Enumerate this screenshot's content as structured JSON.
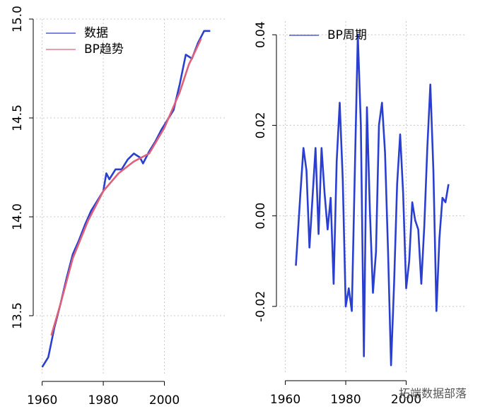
{
  "chart_data": [
    {
      "type": "line",
      "series": [
        {
          "name": "数据",
          "color": "#2a3fd0",
          "x": [
            1960,
            1962,
            1964,
            1966,
            1968,
            1970,
            1972,
            1974,
            1976,
            1978,
            1980,
            1981,
            1982,
            1984,
            1986,
            1988,
            1990,
            1992,
            1993,
            1995,
            1997,
            1999,
            2001,
            2003,
            2005,
            2007,
            2009,
            2011,
            2013,
            2015
          ],
          "values": [
            13.24,
            13.29,
            13.44,
            13.56,
            13.69,
            13.81,
            13.88,
            13.96,
            14.03,
            14.08,
            14.13,
            14.22,
            14.19,
            14.24,
            14.24,
            14.29,
            14.32,
            14.3,
            14.27,
            14.33,
            14.38,
            14.44,
            14.49,
            14.54,
            14.67,
            14.82,
            14.8,
            14.88,
            14.94,
            14.94
          ]
        },
        {
          "name": "BP趋势",
          "color": "#e0607a",
          "x": [
            1963,
            1966,
            1970,
            1975,
            1980,
            1985,
            1990,
            1995,
            2000,
            2005,
            2008,
            2012
          ],
          "values": [
            13.4,
            13.56,
            13.79,
            13.98,
            14.13,
            14.22,
            14.28,
            14.32,
            14.45,
            14.63,
            14.77,
            14.9
          ]
        }
      ],
      "xlim": [
        1958,
        2020
      ],
      "ylim": [
        13.2,
        15.0
      ],
      "xticks": [
        1960,
        1980,
        2000
      ],
      "yticks": [
        13.5,
        {
          "value": 14,
          "label": "14.0"
        },
        14.5,
        {
          "value": 15,
          "label": "15.0"
        }
      ],
      "grid": true,
      "legend": "top-left"
    },
    {
      "type": "line",
      "series": [
        {
          "name": "BP周期",
          "color": "#2a3fd0",
          "x": [
            1963.5,
            1965,
            1966,
            1967,
            1968,
            1969,
            1970,
            1971,
            1972,
            1973,
            1974,
            1975,
            1976,
            1977,
            1978,
            1979,
            1980,
            1981,
            1982,
            1983,
            1984,
            1985,
            1986,
            1987,
            1988,
            1989,
            1990,
            1991,
            1992,
            1993,
            1994,
            1995,
            1996,
            1997,
            1998,
            1999,
            2000,
            2001,
            2002,
            2003,
            2004,
            2005,
            2006,
            2007,
            2008,
            2009,
            2010,
            2011,
            2012,
            2013,
            2014
          ],
          "values": [
            -0.011,
            0.005,
            0.015,
            0.01,
            -0.007,
            0.004,
            0.015,
            -0.004,
            0.015,
            0.005,
            -0.003,
            0.004,
            -0.015,
            0.012,
            0.025,
            0.008,
            -0.02,
            -0.016,
            -0.021,
            0.01,
            0.04,
            0.02,
            -0.031,
            0.024,
            0.001,
            -0.017,
            -0.008,
            0.02,
            0.025,
            0.014,
            -0.008,
            -0.033,
            -0.015,
            0.007,
            0.018,
            0.005,
            -0.016,
            -0.01,
            0.003,
            -0.001,
            -0.003,
            -0.015,
            -0.002,
            0.015,
            0.029,
            0.01,
            -0.021,
            -0.005,
            0.004,
            0.003,
            0.007
          ]
        }
      ],
      "xlim": [
        1958,
        2020
      ],
      "ylim": [
        -0.035,
        0.043
      ],
      "xticks": [
        1960,
        1980,
        2000
      ],
      "yticks": [
        -0.02,
        {
          "value": 0,
          "label": "0.00"
        },
        0.02,
        0.04
      ],
      "grid": true,
      "legend": "top-left"
    }
  ],
  "watermark": "拓端数据部落"
}
